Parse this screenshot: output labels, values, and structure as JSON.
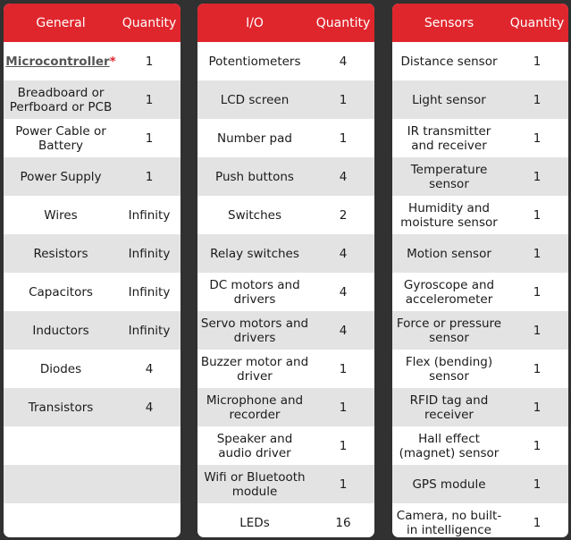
{
  "general": {
    "header": {
      "name": "General",
      "qty": "Quantity"
    },
    "rows": [
      {
        "name": "Microcontroller",
        "marker": "*",
        "qty": "1"
      },
      {
        "name": "Breadboard or Perfboard or PCB",
        "qty": "1"
      },
      {
        "name": "Power Cable or Battery",
        "qty": "1"
      },
      {
        "name": "Power Supply",
        "qty": "1"
      },
      {
        "name": "Wires",
        "qty": "Infinity"
      },
      {
        "name": "Resistors",
        "qty": "Infinity"
      },
      {
        "name": "Capacitors",
        "qty": "Infinity"
      },
      {
        "name": "Inductors",
        "qty": "Infinity"
      },
      {
        "name": "Diodes",
        "qty": "4"
      },
      {
        "name": "Transistors",
        "qty": "4"
      },
      {
        "name": "",
        "qty": ""
      },
      {
        "name": "",
        "qty": ""
      },
      {
        "name": "",
        "qty": ""
      }
    ]
  },
  "io": {
    "header": {
      "name": "I/O",
      "qty": "Quantity"
    },
    "rows": [
      {
        "name": "Potentiometers",
        "qty": "4"
      },
      {
        "name": "LCD screen",
        "qty": "1"
      },
      {
        "name": "Number pad",
        "qty": "1"
      },
      {
        "name": "Push buttons",
        "qty": "4"
      },
      {
        "name": "Switches",
        "qty": "2"
      },
      {
        "name": "Relay switches",
        "qty": "4"
      },
      {
        "name": "DC motors and drivers",
        "qty": "4"
      },
      {
        "name": "Servo motors and drivers",
        "qty": "4"
      },
      {
        "name": "Buzzer motor and driver",
        "qty": "1"
      },
      {
        "name": "Microphone and recorder",
        "qty": "1"
      },
      {
        "name": "Speaker and audio driver",
        "qty": "1"
      },
      {
        "name": "Wifi or Bluetooth module",
        "qty": "1"
      },
      {
        "name": "LEDs",
        "qty": "16"
      }
    ]
  },
  "sensors": {
    "header": {
      "name": "Sensors",
      "qty": "Quantity"
    },
    "rows": [
      {
        "name": "Distance sensor",
        "qty": "1"
      },
      {
        "name": "Light sensor",
        "qty": "1"
      },
      {
        "name": "IR transmitter and receiver",
        "qty": "1"
      },
      {
        "name": "Temperature sensor",
        "qty": "1"
      },
      {
        "name": "Humidity and moisture sensor",
        "qty": "1"
      },
      {
        "name": "Motion sensor",
        "qty": "1"
      },
      {
        "name": "Gyroscope and accelerometer",
        "qty": "1"
      },
      {
        "name": "Force or pressure sensor",
        "qty": "1"
      },
      {
        "name": "Flex (bending) sensor",
        "qty": "1"
      },
      {
        "name": "RFID tag and receiver",
        "qty": "1"
      },
      {
        "name": "Hall effect (magnet) sensor",
        "qty": "1"
      },
      {
        "name": "GPS module",
        "qty": "1"
      },
      {
        "name": "Camera, no built-in intelligence",
        "qty": "1"
      }
    ]
  },
  "colors": {
    "header": "#e0262d",
    "row_alt": "#e3e3e3",
    "background": "#313131"
  }
}
